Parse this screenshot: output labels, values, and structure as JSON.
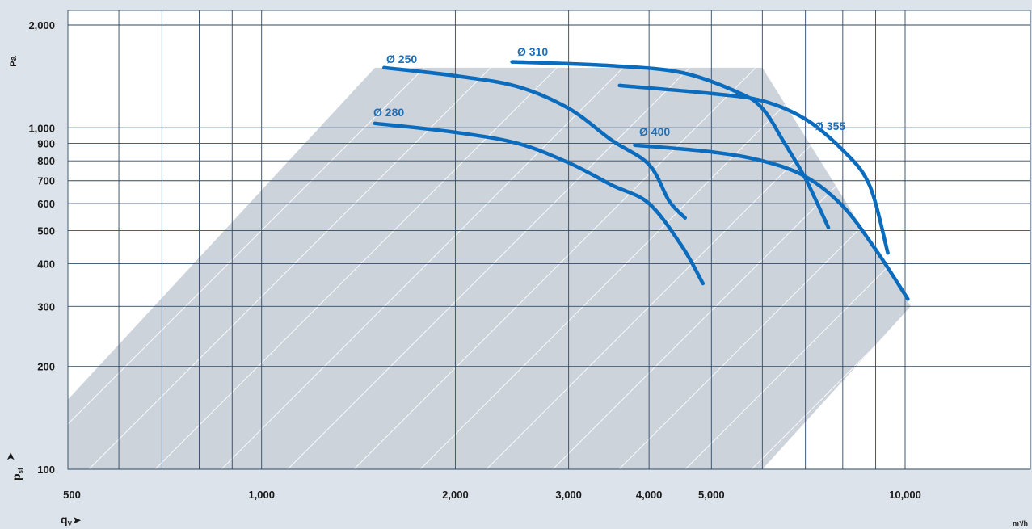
{
  "chart_data": {
    "type": "line",
    "title": "",
    "xscale": "log",
    "yscale": "log",
    "xlim": [
      500,
      14000
    ],
    "ylim": [
      100,
      2300
    ],
    "grid": true,
    "x_ticks": [
      {
        "value": 500,
        "label": "500"
      },
      {
        "value": 1000,
        "label": "1,000"
      },
      {
        "value": 2000,
        "label": "2,000"
      },
      {
        "value": 3000,
        "label": "3,000"
      },
      {
        "value": 4000,
        "label": "4,000"
      },
      {
        "value": 5000,
        "label": "5,000"
      },
      {
        "value": 10000,
        "label": "10,000"
      }
    ],
    "x_gridlines": [
      600,
      700,
      800,
      900,
      1000,
      2000,
      3000,
      4000,
      5000,
      6000,
      7000,
      8000,
      9000,
      10000
    ],
    "y_ticks": [
      {
        "value": 100,
        "label": "100"
      },
      {
        "value": 200,
        "label": "200"
      },
      {
        "value": 300,
        "label": "300"
      },
      {
        "value": 400,
        "label": "400"
      },
      {
        "value": 500,
        "label": "500"
      },
      {
        "value": 600,
        "label": "600"
      },
      {
        "value": 700,
        "label": "700"
      },
      {
        "value": 800,
        "label": "800"
      },
      {
        "value": 900,
        "label": "900"
      },
      {
        "value": 1000,
        "label": "1,000"
      },
      {
        "value": 2000,
        "label": "2,000"
      }
    ],
    "xlabel": {
      "symbol": "q",
      "subscript": "V",
      "unit": "m³/h"
    },
    "ylabel": {
      "symbol": "p",
      "subscript": "sf",
      "unit": "Pa"
    },
    "operating_range": [
      [
        500,
        160
      ],
      [
        1500,
        1500
      ],
      [
        6000,
        1500
      ],
      [
        10200,
        300
      ],
      [
        6000,
        100
      ],
      [
        500,
        100
      ]
    ],
    "series": [
      {
        "name": "Ø 250",
        "points": [
          [
            1550,
            1500
          ],
          [
            2000,
            1420
          ],
          [
            2500,
            1320
          ],
          [
            3000,
            1140
          ],
          [
            3500,
            920
          ],
          [
            4000,
            780
          ],
          [
            4300,
            610
          ],
          [
            4550,
            545
          ]
        ]
      },
      {
        "name": "Ø 280",
        "points": [
          [
            1500,
            1030
          ],
          [
            2000,
            970
          ],
          [
            2500,
            900
          ],
          [
            3000,
            790
          ],
          [
            3500,
            680
          ],
          [
            4000,
            600
          ],
          [
            4500,
            450
          ],
          [
            4850,
            350
          ]
        ]
      },
      {
        "name": "Ø 310",
        "points": [
          [
            2450,
            1560
          ],
          [
            3500,
            1520
          ],
          [
            4500,
            1450
          ],
          [
            5500,
            1270
          ],
          [
            6000,
            1140
          ],
          [
            6500,
            900
          ],
          [
            7000,
            710
          ],
          [
            7600,
            510
          ]
        ]
      },
      {
        "name": "Ø 355",
        "points": [
          [
            3600,
            1330
          ],
          [
            5000,
            1260
          ],
          [
            6000,
            1200
          ],
          [
            7000,
            1060
          ],
          [
            8000,
            860
          ],
          [
            8800,
            680
          ],
          [
            9400,
            430
          ]
        ]
      },
      {
        "name": "Ø 400",
        "points": [
          [
            3800,
            890
          ],
          [
            5000,
            850
          ],
          [
            6000,
            800
          ],
          [
            7000,
            720
          ],
          [
            8000,
            590
          ],
          [
            9000,
            440
          ],
          [
            10100,
            315
          ]
        ]
      }
    ],
    "colors": {
      "curve": "#0b6cbd",
      "label": "#1f6fb8",
      "range": "#cdd3db",
      "plot_bg": "#ffffff",
      "panel_bg": "#dde3ea",
      "grid": "#2e4a66"
    }
  }
}
